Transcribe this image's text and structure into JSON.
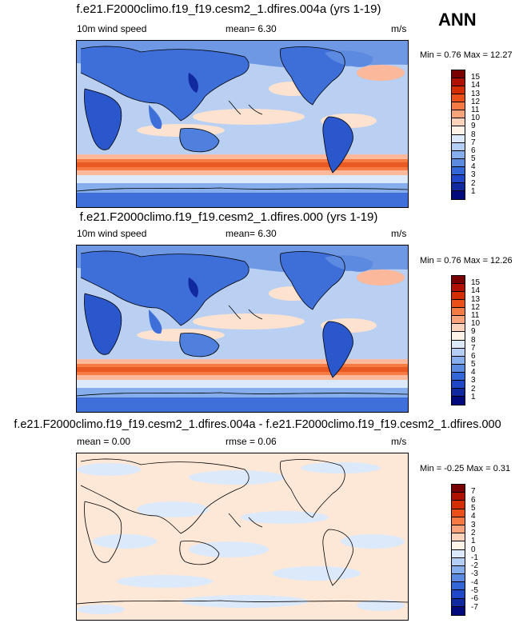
{
  "season": "ANN",
  "panels": [
    {
      "title": "f.e21.F2000climo.f19_f19.cesm2_1.dfires.004a (yrs 1-19)",
      "left_label": "10m wind speed",
      "center_label": "mean=   6.30",
      "right_label": "m/s",
      "minmax": "Min =  0.76 Max = 12.27",
      "colorbar": {
        "labels": [
          "15",
          "14",
          "13",
          "12",
          "11",
          "10",
          "9",
          "8",
          "7",
          "6",
          "5",
          "4",
          "3",
          "2",
          "1"
        ],
        "colors": [
          "#7a0000",
          "#b01000",
          "#d42e00",
          "#ea5018",
          "#f57a44",
          "#fba47c",
          "#fdd3bc",
          "#fff2e6",
          "#dce9fb",
          "#b4cef5",
          "#86aeec",
          "#5b8ae0",
          "#3366d6",
          "#1f47c7",
          "#10299f",
          "#000a7c"
        ]
      }
    },
    {
      "title": "f.e21.F2000climo.f19_f19.cesm2_1.dfires.000 (yrs 1-19)",
      "left_label": "10m wind speed",
      "center_label": "mean=   6.30",
      "right_label": "m/s",
      "minmax": "Min =  0.76 Max = 12.26",
      "colorbar": {
        "labels": [
          "15",
          "14",
          "13",
          "12",
          "11",
          "10",
          "9",
          "8",
          "7",
          "6",
          "5",
          "4",
          "3",
          "2",
          "1"
        ],
        "colors": [
          "#7a0000",
          "#b01000",
          "#d42e00",
          "#ea5018",
          "#f57a44",
          "#fba47c",
          "#fdd3bc",
          "#fff2e6",
          "#dce9fb",
          "#b4cef5",
          "#86aeec",
          "#5b8ae0",
          "#3366d6",
          "#1f47c7",
          "#10299f",
          "#000a7c"
        ]
      }
    },
    {
      "title": "f.e21.F2000climo.f19_f19.cesm2_1.dfires.004a - f.e21.F2000climo.f19_f19.cesm2_1.dfires.000",
      "left_label": "mean =   0.00",
      "center_label": "rmse =   0.06",
      "right_label": "m/s",
      "minmax": "Min = -0.25 Max =  0.31",
      "colorbar": {
        "labels": [
          "7",
          "6",
          "5",
          "4",
          "3",
          "2",
          "1",
          "0",
          "-1",
          "-2",
          "-3",
          "-4",
          "-5",
          "-6",
          "-7"
        ],
        "colors": [
          "#7a0000",
          "#b01000",
          "#d42e00",
          "#ea5018",
          "#f57a44",
          "#fba47c",
          "#fdd3bc",
          "#fff2e6",
          "#dce9fb",
          "#b4cef5",
          "#86aeec",
          "#5b8ae0",
          "#3366d6",
          "#1f47c7",
          "#10299f",
          "#000a7c"
        ]
      }
    }
  ]
}
